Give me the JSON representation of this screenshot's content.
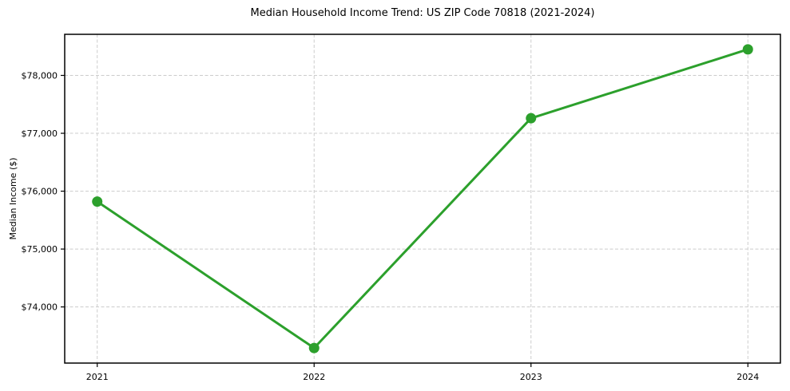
{
  "chart_data": {
    "type": "line",
    "title": "Median Household Income Trend: US ZIP Code 70818 (2021-2024)",
    "xlabel": "",
    "ylabel": "Median Income ($)",
    "x": [
      2021,
      2022,
      2023,
      2024
    ],
    "series": [
      {
        "name": "Median Household Income",
        "values": [
          75820,
          73290,
          77260,
          78450
        ]
      }
    ],
    "x_tick_labels": [
      "2021",
      "2022",
      "2023",
      "2024"
    ],
    "y_ticks": [
      {
        "value": 74000,
        "label": "$74,000"
      },
      {
        "value": 75000,
        "label": "$75,000"
      },
      {
        "value": 76000,
        "label": "$76,000"
      },
      {
        "value": 77000,
        "label": "$77,000"
      },
      {
        "value": 78000,
        "label": "$78,000"
      }
    ],
    "xlim": [
      2020.85,
      2024.15
    ],
    "ylim": [
      73030,
      78710
    ],
    "grid": "dashed, both axes",
    "legend_position": "none",
    "line_color": "#2ca02c",
    "marker": "circle",
    "grid_color": "#cccccc",
    "axis_color": "#000000",
    "text_color": "#000000",
    "background_color": "#ffffff"
  }
}
